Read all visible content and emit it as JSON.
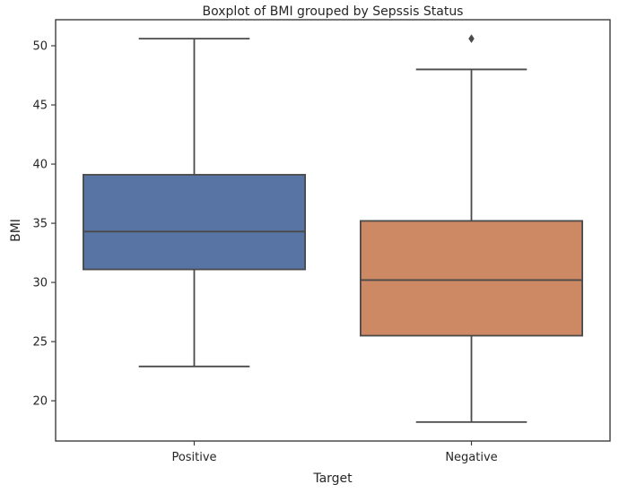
{
  "chart_data": {
    "type": "boxplot",
    "title": "Boxplot of BMI grouped by Sepssis Status",
    "xlabel": "Target",
    "ylabel": "BMI",
    "ylim": [
      16.6,
      52.2
    ],
    "yticks": [
      20,
      25,
      30,
      35,
      40,
      45,
      50
    ],
    "grid": false,
    "categories": [
      "Positive",
      "Negative"
    ],
    "colors": [
      "#5874a5",
      "#cc8964"
    ],
    "line_color": "#4a4a4a",
    "boxes": [
      {
        "name": "Positive",
        "whislo": 22.9,
        "q1": 31.1,
        "median": 34.3,
        "q3": 39.1,
        "whishi": 50.6,
        "fliers": []
      },
      {
        "name": "Negative",
        "whislo": 18.2,
        "q1": 25.5,
        "median": 30.2,
        "q3": 35.2,
        "whishi": 48.0,
        "fliers": [
          50.6
        ]
      }
    ]
  }
}
